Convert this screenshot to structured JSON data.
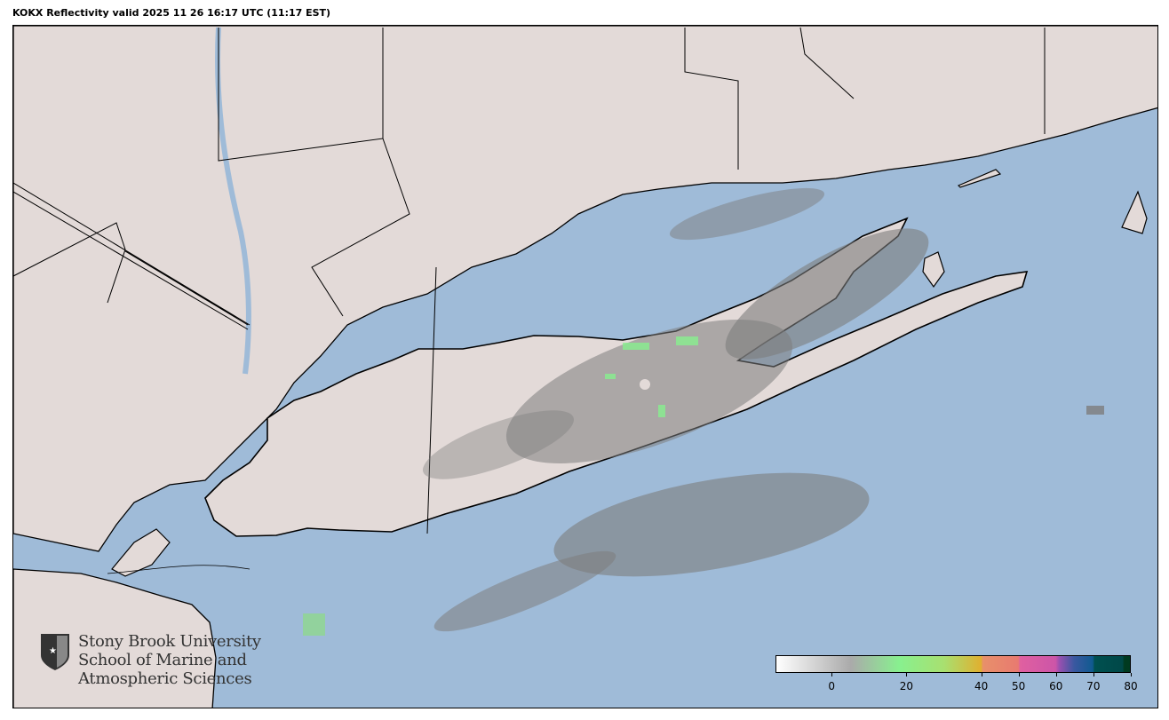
{
  "title": "KOKX Reflectivity valid 2025 11 26 16:17 UTC (11:17 EST)",
  "colors": {
    "water": "#9fbbd8",
    "land": "#e3dad8",
    "echo": "#7d7d7d",
    "boundary": "#000000"
  },
  "radar": {
    "site": "KOKX",
    "product": "Reflectivity"
  },
  "logo": {
    "lines": [
      "Stony Brook University",
      "School of Marine and",
      "Atmospheric Sciences"
    ]
  },
  "colorbar": {
    "range": [
      -15,
      80
    ],
    "ticks": [
      {
        "value": 0,
        "label": "0"
      },
      {
        "value": 20,
        "label": "20"
      },
      {
        "value": 40,
        "label": "40"
      },
      {
        "value": 50,
        "label": "50"
      },
      {
        "value": 60,
        "label": "60"
      },
      {
        "value": 70,
        "label": "70"
      },
      {
        "value": 80,
        "label": "80"
      }
    ],
    "stops": [
      {
        "value": -15,
        "color": "#ffffff"
      },
      {
        "value": 5,
        "color": "#aaaaaa"
      },
      {
        "value": 18,
        "color": "#88f08f"
      },
      {
        "value": 30,
        "color": "#a8e070"
      },
      {
        "value": 40,
        "color": "#e0b030"
      },
      {
        "value": 40.5,
        "color": "#e8906a"
      },
      {
        "value": 50,
        "color": "#e87a70"
      },
      {
        "value": 50.5,
        "color": "#e060a0"
      },
      {
        "value": 60,
        "color": "#cc55a8"
      },
      {
        "value": 61,
        "color": "#9a50b0"
      },
      {
        "value": 65,
        "color": "#3a58a0"
      },
      {
        "value": 70,
        "color": "#105a90"
      },
      {
        "value": 70.5,
        "color": "#005050"
      },
      {
        "value": 78,
        "color": "#004848"
      },
      {
        "value": 78.5,
        "color": "#003a20"
      },
      {
        "value": 80,
        "color": "#003a20"
      }
    ]
  }
}
